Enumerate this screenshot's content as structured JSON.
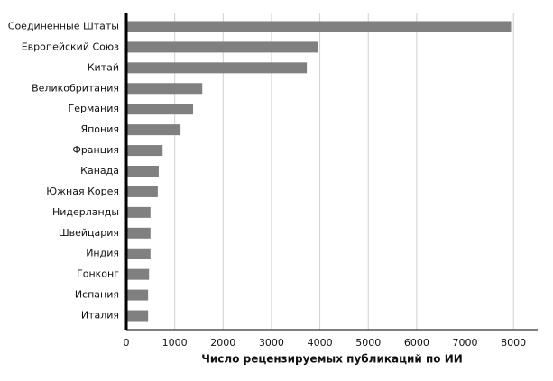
{
  "chart_data": {
    "type": "hbar",
    "xlabel": "Число рецензируемых публикаций по ИИ",
    "categories": [
      "Соединенные Штаты",
      "Европейский Союз",
      "Китай",
      "Великобритания",
      "Германия",
      "Япония",
      "Франция",
      "Канада",
      "Южная Корея",
      "Нидерланды",
      "Швейцария",
      "Индия",
      "Гонконг",
      "Испания",
      "Италия"
    ],
    "values": [
      7950,
      3955,
      3730,
      1570,
      1380,
      1120,
      750,
      670,
      650,
      500,
      500,
      500,
      470,
      450,
      450
    ],
    "color": "#808080",
    "xlim": [
      0,
      8500
    ],
    "xticks": [
      0,
      1000,
      2000,
      3000,
      4000,
      5000,
      6000,
      7000,
      8000
    ],
    "grid": true
  }
}
